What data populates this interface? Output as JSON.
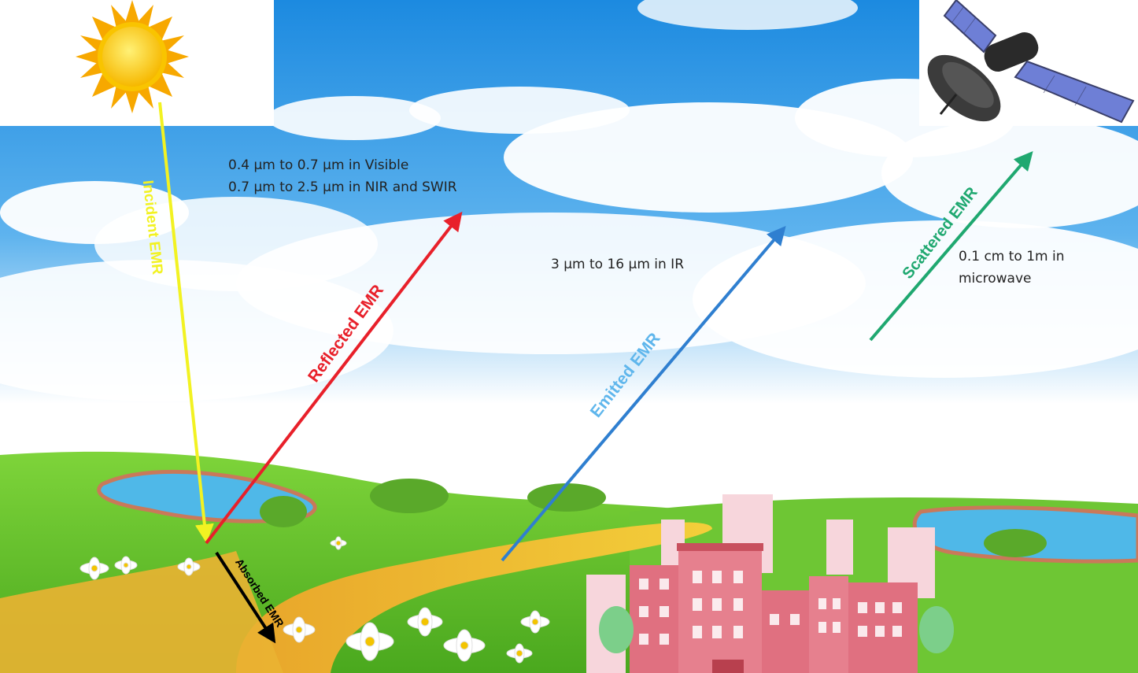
{
  "labels": {
    "incident": "Incident EMR",
    "reflected": "Reflected EMR",
    "emitted": "Emitted  EMR",
    "scattered": "Scattered EMR",
    "absorbed": "Absorbed EMR"
  },
  "notes": {
    "visible": "0.4 μm to 0.7 μm in Visible",
    "nir": "0.7 μm to 2.5 μm in NIR and SWIR",
    "ir": "3 μm to 16 μm in IR",
    "micro_1": "0.1 cm to 1m in",
    "micro_2": "microwave"
  },
  "colors": {
    "incident": "#f2f222",
    "reflected": "#e8202a",
    "emitted": "#2f7fd0",
    "scattered": "#1fa870",
    "absorbed": "#000000"
  },
  "icons": [
    "sun-icon",
    "satellite-icon",
    "buildings-icon",
    "daisy-flowers"
  ]
}
